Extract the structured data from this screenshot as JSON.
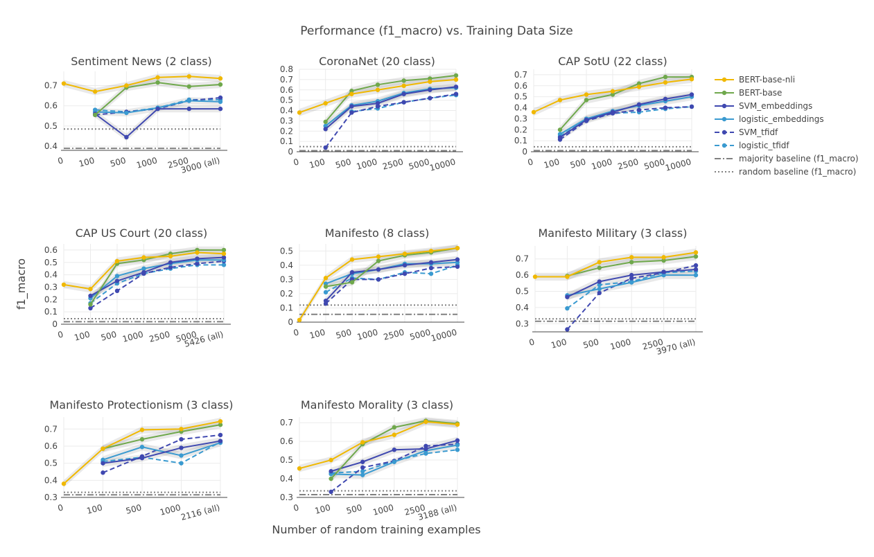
{
  "figure": {
    "title": "Performance (f1_macro) vs. Training Data Size",
    "xlabel": "Number of random training examples",
    "ylabel": "f1_macro"
  },
  "legend": [
    {
      "key": "bert_nli",
      "label": "BERT-base-nli",
      "color": "#F0B800",
      "dash": "solid"
    },
    {
      "key": "bert",
      "label": "BERT-base",
      "color": "#6FA84C",
      "dash": "solid"
    },
    {
      "key": "svm_emb",
      "label": "SVM_embeddings",
      "color": "#3F48B0",
      "dash": "solid"
    },
    {
      "key": "log_emb",
      "label": "logistic_embeddings",
      "color": "#3A9AD0",
      "dash": "solid"
    },
    {
      "key": "svm_tfidf",
      "label": "SVM_tfidf",
      "color": "#3F48B0",
      "dash": "dash"
    },
    {
      "key": "log_tfidf",
      "label": "logistic_tfidf",
      "color": "#3A9AD0",
      "dash": "dash"
    },
    {
      "key": "majority",
      "label": "majority baseline (f1_macro)",
      "color": "#808080",
      "dash": "dashdot"
    },
    {
      "key": "random",
      "label": "random baseline (f1_macro)",
      "color": "#808080",
      "dash": "dot"
    }
  ],
  "chart_data": [
    {
      "type": "line",
      "title": "Sentiment News (2 class)",
      "categories": [
        "0",
        "100",
        "500",
        "1000",
        "2500",
        "3000 (all)"
      ],
      "ylim": [
        0.38,
        0.77
      ],
      "yticks": [
        "0.4",
        "0.5",
        "0.6",
        "0.7"
      ],
      "yticks_values": [
        0.4,
        0.5,
        0.6,
        0.7
      ],
      "baselines": {
        "majority": 0.39,
        "random": 0.485
      },
      "series": [
        {
          "key": "bert_nli",
          "values": [
            0.71,
            0.67,
            0.7,
            0.74,
            0.745,
            0.735
          ]
        },
        {
          "key": "bert",
          "values": [
            null,
            0.555,
            0.69,
            0.715,
            0.695,
            0.705
          ]
        },
        {
          "key": "svm_emb",
          "values": [
            null,
            0.56,
            0.445,
            0.585,
            0.585,
            0.585
          ]
        },
        {
          "key": "log_emb",
          "values": [
            null,
            0.57,
            0.565,
            0.59,
            0.625,
            0.62
          ]
        },
        {
          "key": "svm_tfidf",
          "values": [
            null,
            0.555,
            0.57,
            0.585,
            0.625,
            0.64
          ]
        },
        {
          "key": "log_tfidf",
          "values": [
            null,
            0.58,
            0.57,
            0.59,
            0.63,
            0.63
          ]
        }
      ]
    },
    {
      "type": "line",
      "title": "CoronaNet (20 class)",
      "categories": [
        "0",
        "100",
        "500",
        "1000",
        "2500",
        "5000",
        "10000"
      ],
      "ylim": [
        0,
        0.8
      ],
      "yticks": [
        "0",
        "0.1",
        "0.2",
        "0.3",
        "0.4",
        "0.5",
        "0.6",
        "0.7",
        "0.8"
      ],
      "yticks_values": [
        0,
        0.1,
        0.2,
        0.3,
        0.4,
        0.5,
        0.6,
        0.7,
        0.8
      ],
      "baselines": {
        "majority": 0.01,
        "random": 0.05
      },
      "series": [
        {
          "key": "bert_nli",
          "values": [
            0.38,
            0.47,
            0.56,
            0.6,
            0.64,
            0.68,
            0.7
          ]
        },
        {
          "key": "bert",
          "values": [
            null,
            0.29,
            0.59,
            0.65,
            0.69,
            0.71,
            0.74
          ]
        },
        {
          "key": "svm_emb",
          "values": [
            null,
            0.22,
            0.44,
            0.47,
            0.56,
            0.6,
            0.63
          ]
        },
        {
          "key": "log_emb",
          "values": [
            null,
            0.25,
            0.45,
            0.49,
            0.57,
            0.61,
            0.62
          ]
        },
        {
          "key": "svm_tfidf",
          "values": [
            null,
            0.04,
            0.38,
            0.44,
            0.48,
            0.52,
            0.56
          ]
        },
        {
          "key": "log_tfidf",
          "values": [
            null,
            null,
            0.39,
            0.42,
            0.48,
            0.52,
            0.55
          ]
        }
      ]
    },
    {
      "type": "line",
      "title": "CAP SotU (22 class)",
      "categories": [
        "0",
        "100",
        "500",
        "1000",
        "2500",
        "5000",
        "10000"
      ],
      "ylim": [
        0,
        0.75
      ],
      "yticks": [
        "0",
        "0.1",
        "0.2",
        "0.3",
        "0.4",
        "0.5",
        "0.6",
        "0.7"
      ],
      "yticks_values": [
        0,
        0.1,
        0.2,
        0.3,
        0.4,
        0.5,
        0.6,
        0.7
      ],
      "baselines": {
        "majority": 0.01,
        "random": 0.045
      },
      "series": [
        {
          "key": "bert_nli",
          "values": [
            0.36,
            0.47,
            0.52,
            0.55,
            0.59,
            0.63,
            0.66
          ]
        },
        {
          "key": "bert",
          "values": [
            null,
            0.2,
            0.47,
            0.52,
            0.62,
            0.68,
            0.68
          ]
        },
        {
          "key": "svm_emb",
          "values": [
            null,
            0.13,
            0.29,
            0.36,
            0.43,
            0.48,
            0.52
          ]
        },
        {
          "key": "log_emb",
          "values": [
            null,
            0.16,
            0.3,
            0.37,
            0.42,
            0.46,
            0.5
          ]
        },
        {
          "key": "svm_tfidf",
          "values": [
            null,
            0.11,
            0.28,
            0.35,
            0.38,
            0.4,
            0.41
          ]
        },
        {
          "key": "log_tfidf",
          "values": [
            null,
            0.14,
            0.29,
            0.35,
            0.36,
            0.39,
            0.41
          ]
        }
      ]
    },
    {
      "type": "line",
      "title": "CAP US Court (20 class)",
      "categories": [
        "0",
        "100",
        "500",
        "1000",
        "2500",
        "5000",
        "5426 (all)"
      ],
      "ylim": [
        0,
        0.65
      ],
      "yticks": [
        "0",
        "0.1",
        "0.2",
        "0.3",
        "0.4",
        "0.5",
        "0.6"
      ],
      "yticks_values": [
        0,
        0.1,
        0.2,
        0.3,
        0.4,
        0.5,
        0.6
      ],
      "baselines": {
        "majority": 0.02,
        "random": 0.045
      },
      "series": [
        {
          "key": "bert_nli",
          "values": [
            0.32,
            0.285,
            0.51,
            0.54,
            0.55,
            0.58,
            0.57
          ]
        },
        {
          "key": "bert",
          "values": [
            null,
            0.16,
            0.49,
            0.52,
            0.57,
            0.6,
            0.6
          ]
        },
        {
          "key": "svm_emb",
          "values": [
            null,
            0.23,
            0.35,
            0.42,
            0.5,
            0.53,
            0.54
          ]
        },
        {
          "key": "log_emb",
          "values": [
            null,
            0.21,
            0.39,
            0.45,
            0.49,
            0.52,
            0.52
          ]
        },
        {
          "key": "svm_tfidf",
          "values": [
            null,
            0.13,
            0.27,
            0.41,
            0.46,
            0.49,
            0.51
          ]
        },
        {
          "key": "log_tfidf",
          "values": [
            null,
            0.17,
            0.33,
            0.41,
            0.45,
            0.48,
            0.48
          ]
        }
      ]
    },
    {
      "type": "line",
      "title": "Manifesto (8 class)",
      "categories": [
        "0",
        "100",
        "500",
        "1000",
        "2500",
        "5000",
        "10000"
      ],
      "ylim": [
        0,
        0.55
      ],
      "yticks": [
        "0",
        "0.1",
        "0.2",
        "0.3",
        "0.4",
        "0.5"
      ],
      "yticks_values": [
        0,
        0.1,
        0.2,
        0.3,
        0.4,
        0.5
      ],
      "baselines": {
        "majority": 0.055,
        "random": 0.12
      },
      "series": [
        {
          "key": "bert_nli",
          "values": [
            0.015,
            0.31,
            0.44,
            0.46,
            0.48,
            0.5,
            0.52
          ]
        },
        {
          "key": "bert",
          "values": [
            null,
            0.25,
            0.28,
            0.43,
            0.47,
            0.49,
            0.52
          ]
        },
        {
          "key": "svm_emb",
          "values": [
            null,
            0.15,
            0.35,
            0.37,
            0.4,
            0.42,
            0.44
          ]
        },
        {
          "key": "log_emb",
          "values": [
            null,
            0.27,
            0.34,
            0.37,
            0.41,
            0.41,
            0.42
          ]
        },
        {
          "key": "svm_tfidf",
          "values": [
            null,
            0.13,
            0.3,
            0.3,
            0.34,
            0.38,
            0.39
          ]
        },
        {
          "key": "log_tfidf",
          "values": [
            null,
            0.21,
            0.31,
            0.3,
            0.35,
            0.34,
            0.4
          ]
        }
      ]
    },
    {
      "type": "line",
      "title": "Manifesto Military (3 class)",
      "categories": [
        "0",
        "100",
        "500",
        "1000",
        "2500",
        "3970 (all)"
      ],
      "ylim": [
        0.25,
        0.78
      ],
      "yticks": [
        "0.3",
        "0.4",
        "0.5",
        "0.6",
        "0.7"
      ],
      "yticks_values": [
        0.3,
        0.4,
        0.5,
        0.6,
        0.7
      ],
      "baselines": {
        "majority": 0.315,
        "random": 0.33
      },
      "series": [
        {
          "key": "bert_nli",
          "values": [
            0.59,
            0.59,
            0.68,
            0.71,
            0.71,
            0.74
          ]
        },
        {
          "key": "bert",
          "values": [
            null,
            0.595,
            0.645,
            0.68,
            0.69,
            0.715
          ]
        },
        {
          "key": "svm_emb",
          "values": [
            null,
            0.465,
            0.56,
            0.6,
            0.62,
            0.635
          ]
        },
        {
          "key": "log_emb",
          "values": [
            null,
            0.475,
            0.515,
            0.555,
            0.6,
            0.6
          ]
        },
        {
          "key": "svm_tfidf",
          "values": [
            null,
            0.265,
            0.49,
            0.58,
            0.615,
            0.66
          ]
        },
        {
          "key": "log_tfidf",
          "values": [
            null,
            0.395,
            0.54,
            0.56,
            0.615,
            0.625
          ]
        }
      ]
    },
    {
      "type": "line",
      "title": "Manifesto Protectionism (3 class)",
      "categories": [
        "0",
        "100",
        "500",
        "1000",
        "2116 (all)"
      ],
      "ylim": [
        0.3,
        0.77
      ],
      "yticks": [
        "0.3",
        "0.4",
        "0.5",
        "0.6",
        "0.7"
      ],
      "yticks_values": [
        0.3,
        0.4,
        0.5,
        0.6,
        0.7
      ],
      "baselines": {
        "majority": 0.315,
        "random": 0.33
      },
      "series": [
        {
          "key": "bert_nli",
          "values": [
            0.38,
            0.585,
            0.695,
            0.7,
            0.745
          ]
        },
        {
          "key": "bert",
          "values": [
            null,
            0.585,
            0.64,
            0.685,
            0.725
          ]
        },
        {
          "key": "svm_emb",
          "values": [
            null,
            0.5,
            0.53,
            0.59,
            0.63
          ]
        },
        {
          "key": "log_emb",
          "values": [
            null,
            0.52,
            0.595,
            0.545,
            0.62
          ]
        },
        {
          "key": "svm_tfidf",
          "values": [
            null,
            0.445,
            0.54,
            0.64,
            0.665
          ]
        },
        {
          "key": "log_tfidf",
          "values": [
            null,
            0.51,
            0.535,
            0.5,
            0.625
          ]
        }
      ]
    },
    {
      "type": "line",
      "title": "Manifesto Morality (3 class)",
      "categories": [
        "0",
        "100",
        "500",
        "1000",
        "2500",
        "3188 (all)"
      ],
      "ylim": [
        0.3,
        0.73
      ],
      "yticks": [
        "0.3",
        "0.4",
        "0.5",
        "0.6",
        "0.7"
      ],
      "yticks_values": [
        0.3,
        0.4,
        0.5,
        0.6,
        0.7
      ],
      "baselines": {
        "majority": 0.315,
        "random": 0.335
      },
      "series": [
        {
          "key": "bert_nli",
          "values": [
            0.455,
            0.5,
            0.595,
            0.635,
            0.705,
            0.69
          ]
        },
        {
          "key": "bert",
          "values": [
            null,
            0.4,
            0.585,
            0.675,
            0.71,
            0.695
          ]
        },
        {
          "key": "svm_emb",
          "values": [
            null,
            0.44,
            0.49,
            0.555,
            0.56,
            0.605
          ]
        },
        {
          "key": "log_emb",
          "values": [
            null,
            0.425,
            0.42,
            0.49,
            0.55,
            0.58
          ]
        },
        {
          "key": "svm_tfidf",
          "values": [
            null,
            0.33,
            0.46,
            0.495,
            0.575,
            0.585
          ]
        },
        {
          "key": "log_tfidf",
          "values": [
            null,
            0.43,
            0.44,
            0.495,
            0.535,
            0.555
          ]
        }
      ]
    }
  ]
}
